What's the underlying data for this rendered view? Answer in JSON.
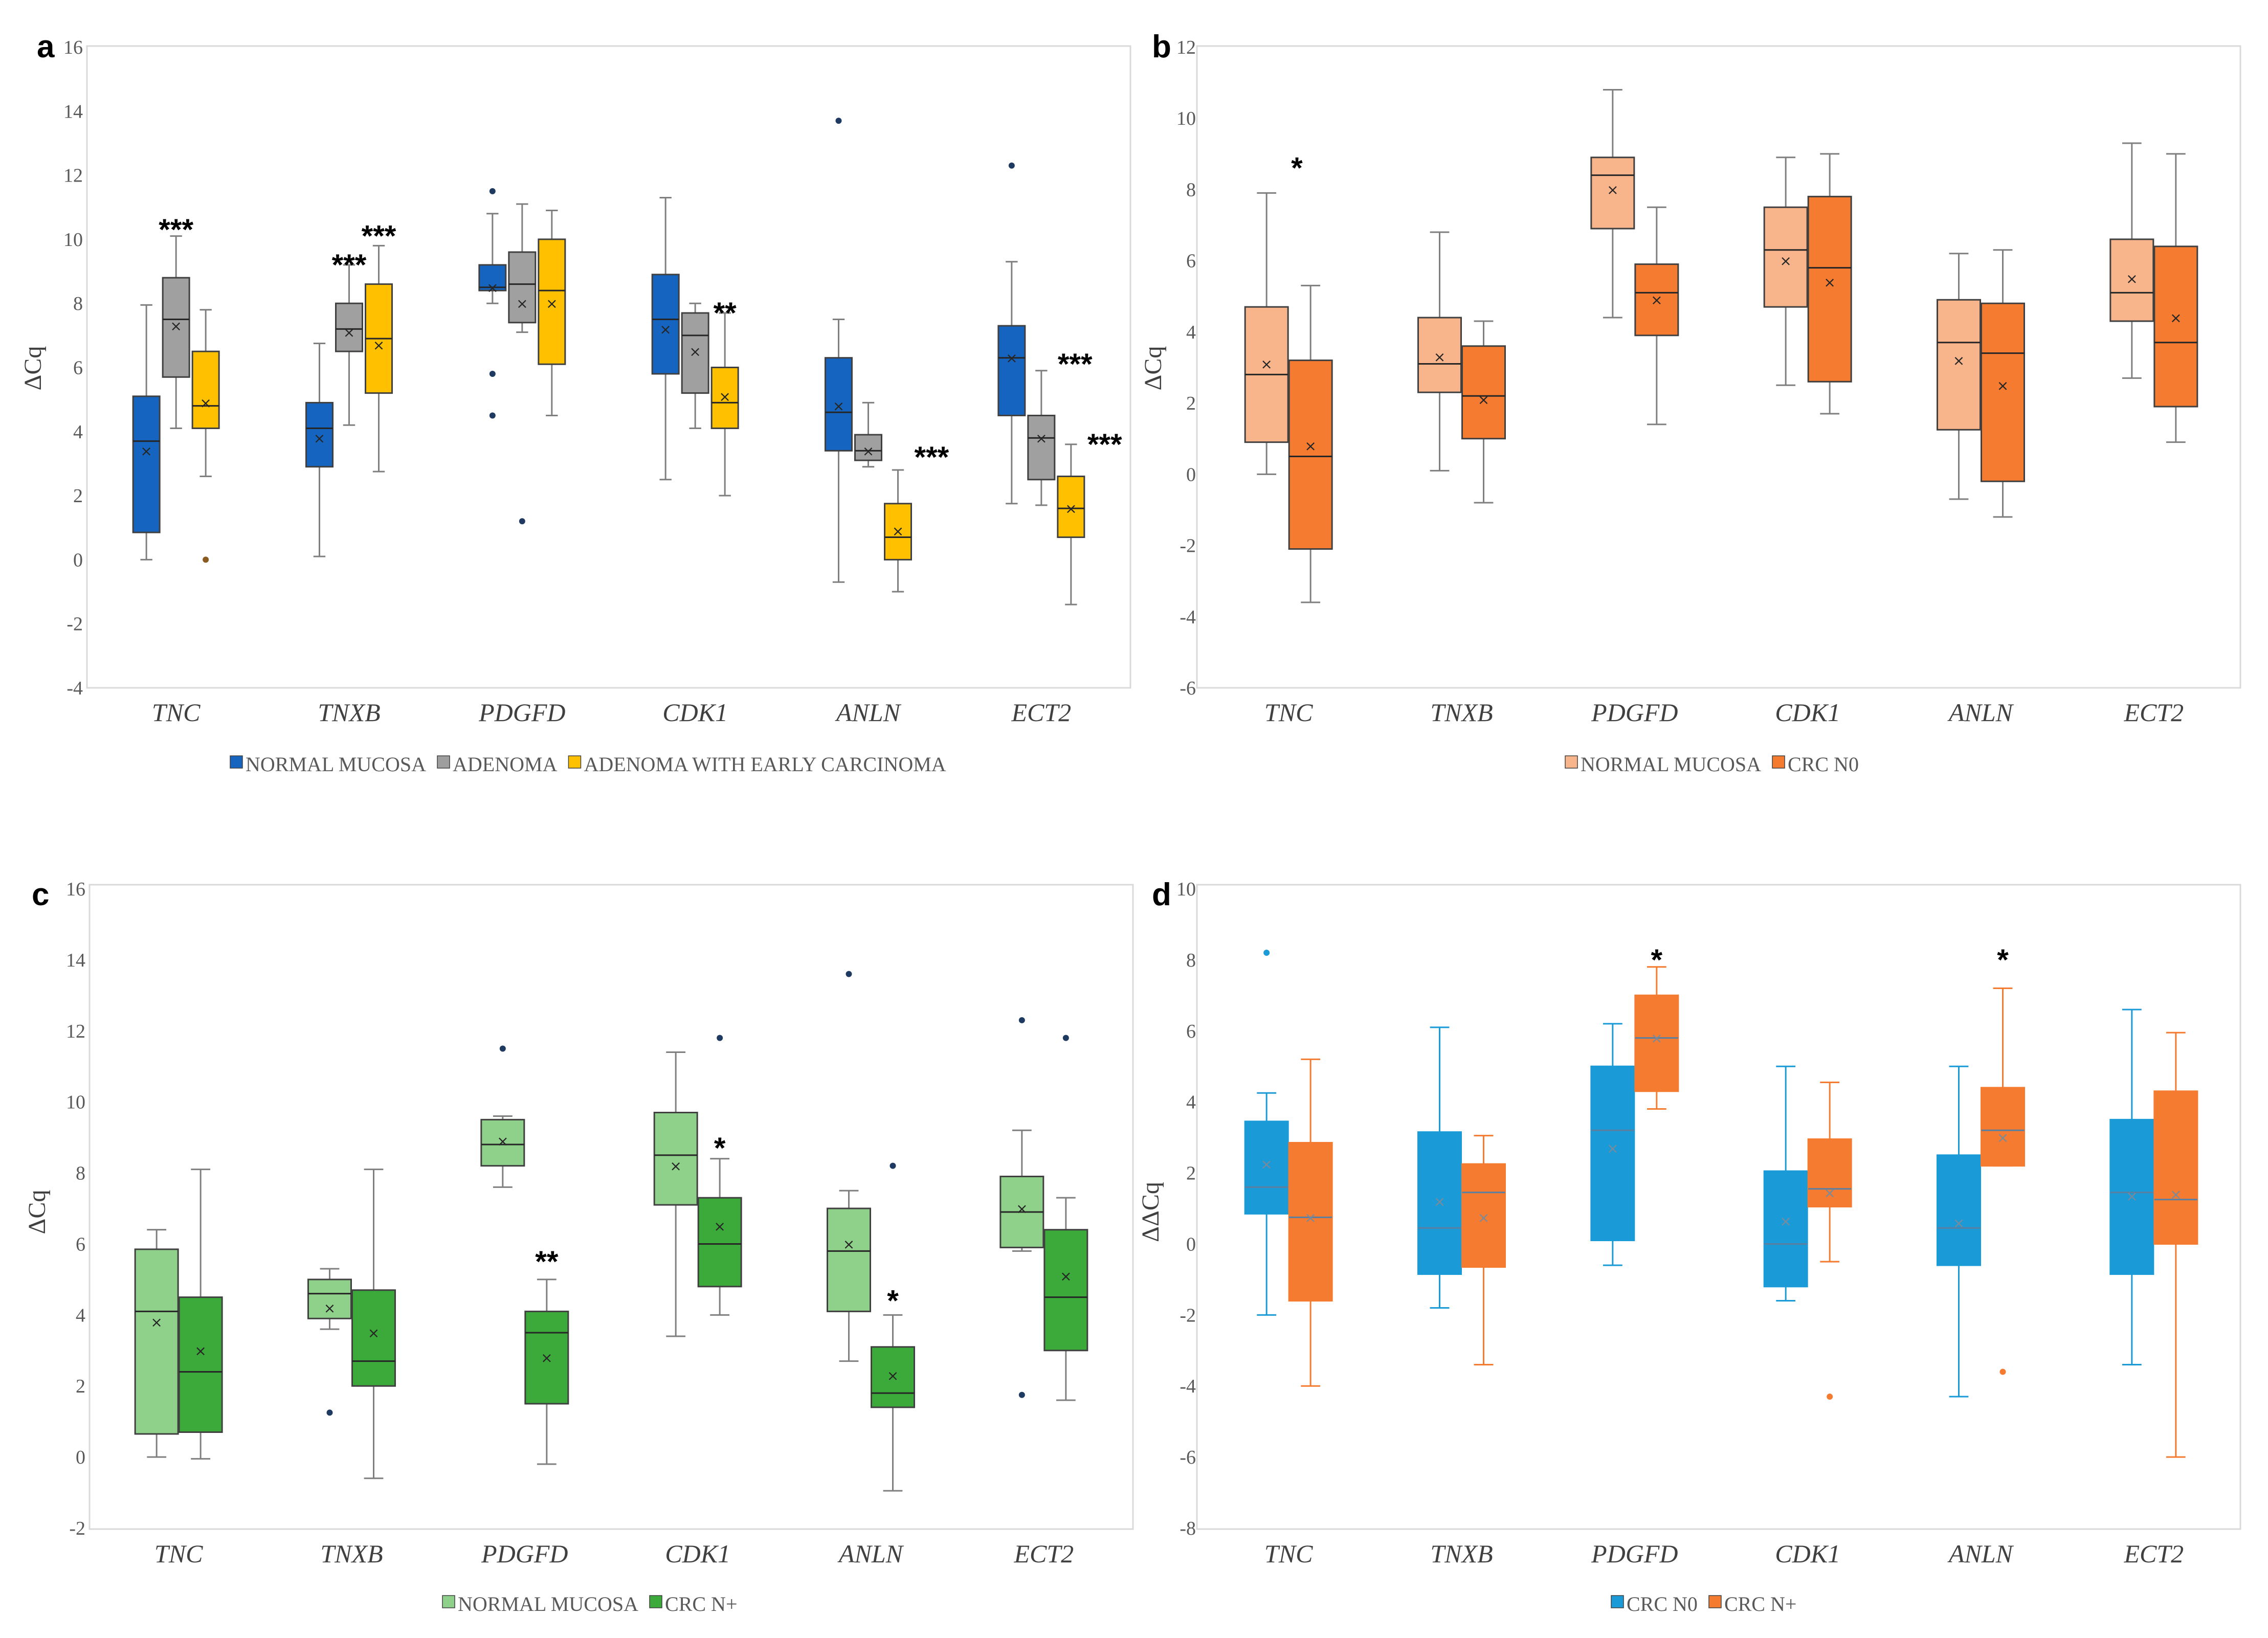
{
  "chart_data": [
    {
      "panel": "a",
      "type": "box",
      "ylabel": "ΔCq",
      "ylim": [
        -4,
        16
      ],
      "yticks": [
        -4,
        -2,
        0,
        2,
        4,
        6,
        8,
        10,
        12,
        14,
        16
      ],
      "categories": [
        "TNC",
        "TNXB",
        "PDGFD",
        "CDK1",
        "ANLN",
        "ECT2"
      ],
      "legend": [
        {
          "name": "NORMAL MUCOSA",
          "color": "#1565C0"
        },
        {
          "name": "ADENOMA",
          "color": "#9E9E9E"
        },
        {
          "name": "ADENOMA WITH EARLY CARCINOMA",
          "color": "#FFC000"
        }
      ],
      "series": [
        {
          "name": "NORMAL MUCOSA",
          "fill": "#1565C0",
          "stroke": "#404040",
          "boxes": [
            {
              "min": 0.0,
              "q1": 0.85,
              "median": 3.7,
              "q3": 5.1,
              "max": 7.95,
              "mean": 3.4,
              "outliers": []
            },
            {
              "min": 0.1,
              "q1": 2.9,
              "median": 4.1,
              "q3": 4.9,
              "max": 6.75,
              "mean": 3.8,
              "outliers": []
            },
            {
              "min": 8.0,
              "q1": 8.4,
              "median": 8.5,
              "q3": 9.2,
              "max": 10.8,
              "mean": 8.5,
              "outliers": [
                11.5,
                5.8,
                4.5
              ]
            },
            {
              "min": 2.5,
              "q1": 5.8,
              "median": 7.5,
              "q3": 8.9,
              "max": 11.3,
              "mean": 7.2,
              "outliers": []
            },
            {
              "min": -0.7,
              "q1": 3.4,
              "median": 4.6,
              "q3": 6.3,
              "max": 7.5,
              "mean": 4.8,
              "outliers": [
                13.7
              ]
            },
            {
              "min": 1.75,
              "q1": 4.5,
              "median": 6.3,
              "q3": 7.3,
              "max": 9.3,
              "mean": 6.3,
              "outliers": [
                12.3
              ]
            }
          ]
        },
        {
          "name": "ADENOMA",
          "fill": "#A0A0A0",
          "stroke": "#404040",
          "boxes": [
            {
              "min": 4.1,
              "q1": 5.7,
              "median": 7.5,
              "q3": 8.8,
              "max": 10.1,
              "mean": 7.3,
              "outliers": []
            },
            {
              "min": 4.2,
              "q1": 6.5,
              "median": 7.2,
              "q3": 8.0,
              "max": 9.2,
              "mean": 7.1,
              "outliers": []
            },
            {
              "min": 7.1,
              "q1": 7.4,
              "median": 8.6,
              "q3": 9.6,
              "max": 11.1,
              "mean": 8.0,
              "outliers": [
                1.2
              ]
            },
            {
              "min": 4.1,
              "q1": 5.2,
              "median": 7.0,
              "q3": 7.7,
              "max": 8.0,
              "mean": 6.5,
              "outliers": []
            },
            {
              "min": 2.9,
              "q1": 3.1,
              "median": 3.4,
              "q3": 3.9,
              "max": 4.9,
              "mean": 3.4,
              "outliers": []
            },
            {
              "min": 1.7,
              "q1": 2.5,
              "median": 3.8,
              "q3": 4.5,
              "max": 5.9,
              "mean": 3.8,
              "outliers": []
            }
          ]
        },
        {
          "name": "ADENOMA WITH EARLY CARCINOMA",
          "fill": "#FFC000",
          "stroke": "#404040",
          "boxes": [
            {
              "min": 2.6,
              "q1": 4.1,
              "median": 4.8,
              "q3": 6.5,
              "max": 7.8,
              "mean": 4.9,
              "outliers": [
                0.0
              ]
            },
            {
              "min": 2.75,
              "q1": 5.2,
              "median": 6.9,
              "q3": 8.6,
              "max": 9.8,
              "mean": 6.7,
              "outliers": []
            },
            {
              "min": 4.5,
              "q1": 6.1,
              "median": 8.4,
              "q3": 10.0,
              "max": 10.9,
              "mean": 8.0,
              "outliers": []
            },
            {
              "min": 2.0,
              "q1": 4.1,
              "median": 4.9,
              "q3": 6.0,
              "max": 7.7,
              "mean": 5.1,
              "outliers": []
            },
            {
              "min": -1.0,
              "q1": 0.0,
              "median": 0.7,
              "q3": 1.75,
              "max": 2.8,
              "mean": 0.9,
              "outliers": []
            },
            {
              "min": -1.4,
              "q1": 0.7,
              "median": 1.6,
              "q3": 2.6,
              "max": 3.6,
              "mean": 1.6,
              "outliers": []
            }
          ]
        }
      ],
      "annotations": [
        {
          "text": "***",
          "category": "TNC",
          "series": 1,
          "y": 10.3
        },
        {
          "text": "***",
          "category": "TNXB",
          "series": 1,
          "y": 9.2
        },
        {
          "text": "***",
          "category": "TNXB",
          "series": 2,
          "y": 10.1
        },
        {
          "text": "**",
          "category": "CDK1",
          "series": 2,
          "y": 7.7
        },
        {
          "text": "***",
          "category": "ANLN",
          "series": 2,
          "y": 3.2,
          "side": "right"
        },
        {
          "text": "***",
          "category": "ECT2",
          "series": 1,
          "y": 6.1,
          "side": "right"
        },
        {
          "text": "***",
          "category": "ECT2",
          "series": 2,
          "y": 3.6,
          "side": "right"
        }
      ]
    },
    {
      "panel": "b",
      "type": "box",
      "ylabel": "ΔCq",
      "ylim": [
        -6,
        12
      ],
      "yticks": [
        -6,
        -4,
        -2,
        0,
        2,
        4,
        6,
        8,
        10,
        12
      ],
      "categories": [
        "TNC",
        "TNXB",
        "PDGFD",
        "CDK1",
        "ANLN",
        "ECT2"
      ],
      "legend": [
        {
          "name": "NORMAL MUCOSA",
          "color": "#F8B48A"
        },
        {
          "name": "CRC N0",
          "color": "#F47B30"
        }
      ],
      "series": [
        {
          "name": "NORMAL MUCOSA",
          "fill": "#F8B48A",
          "stroke": "#404040",
          "boxes": [
            {
              "min": 0.0,
              "q1": 0.9,
              "median": 2.8,
              "q3": 4.7,
              "max": 7.9,
              "mean": 3.1,
              "outliers": []
            },
            {
              "min": 0.1,
              "q1": 2.3,
              "median": 3.1,
              "q3": 4.4,
              "max": 6.8,
              "mean": 3.3,
              "outliers": []
            },
            {
              "min": 4.4,
              "q1": 6.9,
              "median": 8.4,
              "q3": 8.9,
              "max": 10.8,
              "mean": 8.0,
              "outliers": []
            },
            {
              "min": 2.5,
              "q1": 4.7,
              "median": 6.3,
              "q3": 7.5,
              "max": 8.9,
              "mean": 6.0,
              "outliers": []
            },
            {
              "min": -0.7,
              "q1": 1.25,
              "median": 3.7,
              "q3": 4.9,
              "max": 6.2,
              "mean": 3.2,
              "outliers": []
            },
            {
              "min": 2.7,
              "q1": 4.3,
              "median": 5.1,
              "q3": 6.6,
              "max": 9.3,
              "mean": 5.5,
              "outliers": []
            }
          ]
        },
        {
          "name": "CRC N0",
          "fill": "#F47B30",
          "stroke": "#404040",
          "boxes": [
            {
              "min": -3.6,
              "q1": -2.1,
              "median": 0.5,
              "q3": 3.2,
              "max": 5.3,
              "mean": 0.8,
              "outliers": []
            },
            {
              "min": -0.8,
              "q1": 1.0,
              "median": 2.2,
              "q3": 3.6,
              "max": 4.3,
              "mean": 2.1,
              "outliers": []
            },
            {
              "min": 1.4,
              "q1": 3.9,
              "median": 5.1,
              "q3": 5.9,
              "max": 7.5,
              "mean": 4.9,
              "outliers": []
            },
            {
              "min": 1.7,
              "q1": 2.6,
              "median": 5.8,
              "q3": 7.8,
              "max": 9.0,
              "mean": 5.4,
              "outliers": []
            },
            {
              "min": -1.2,
              "q1": -0.2,
              "median": 3.4,
              "q3": 4.8,
              "max": 6.3,
              "mean": 2.5,
              "outliers": []
            },
            {
              "min": 0.9,
              "q1": 1.9,
              "median": 3.7,
              "q3": 6.4,
              "max": 9.0,
              "mean": 4.4,
              "outliers": []
            }
          ]
        }
      ],
      "annotations": [
        {
          "text": "*",
          "category": "TNC",
          "series": 0,
          "y": 8.6,
          "side": "right"
        }
      ]
    },
    {
      "panel": "c",
      "type": "box",
      "ylabel": "ΔCq",
      "ylim": [
        -2,
        16
      ],
      "yticks": [
        -2,
        0,
        2,
        4,
        6,
        8,
        10,
        12,
        14,
        16
      ],
      "categories": [
        "TNC",
        "TNXB",
        "PDGFD",
        "CDK1",
        "ANLN",
        "ECT2"
      ],
      "legend": [
        {
          "name": "NORMAL MUCOSA",
          "color": "#8FD18A"
        },
        {
          "name": "CRC N+",
          "color": "#3BAA3B"
        }
      ],
      "series": [
        {
          "name": "NORMAL MUCOSA",
          "fill": "#8FD18A",
          "stroke": "#404040",
          "boxes": [
            {
              "min": 0.0,
              "q1": 0.65,
              "median": 4.1,
              "q3": 5.85,
              "max": 6.4,
              "mean": 3.8,
              "outliers": []
            },
            {
              "min": 3.6,
              "q1": 3.9,
              "median": 4.6,
              "q3": 5.0,
              "max": 5.3,
              "mean": 4.2,
              "outliers": [
                1.25
              ]
            },
            {
              "min": 7.6,
              "q1": 8.2,
              "median": 8.8,
              "q3": 9.5,
              "max": 9.6,
              "mean": 8.9,
              "outliers": [
                11.5
              ]
            },
            {
              "min": 3.4,
              "q1": 7.1,
              "median": 8.5,
              "q3": 9.7,
              "max": 11.4,
              "mean": 8.2,
              "outliers": []
            },
            {
              "min": 2.7,
              "q1": 4.1,
              "median": 5.8,
              "q3": 7.0,
              "max": 7.5,
              "mean": 6.0,
              "outliers": [
                13.6
              ]
            },
            {
              "min": 5.8,
              "q1": 5.9,
              "median": 6.9,
              "q3": 7.9,
              "max": 9.2,
              "mean": 7.0,
              "outliers": [
                12.3,
                1.75
              ]
            }
          ]
        },
        {
          "name": "CRC N+",
          "fill": "#3BAA3B",
          "stroke": "#404040",
          "boxes": [
            {
              "min": -0.05,
              "q1": 0.7,
              "median": 2.4,
              "q3": 4.5,
              "max": 8.1,
              "mean": 3.0,
              "outliers": []
            },
            {
              "min": -0.6,
              "q1": 2.0,
              "median": 2.7,
              "q3": 4.7,
              "max": 8.1,
              "mean": 3.5,
              "outliers": []
            },
            {
              "min": -0.2,
              "q1": 1.5,
              "median": 3.5,
              "q3": 4.1,
              "max": 5.0,
              "mean": 2.8,
              "outliers": []
            },
            {
              "min": 4.0,
              "q1": 4.8,
              "median": 6.0,
              "q3": 7.3,
              "max": 8.4,
              "mean": 6.5,
              "outliers": [
                11.8
              ]
            },
            {
              "min": -0.95,
              "q1": 1.4,
              "median": 1.8,
              "q3": 3.1,
              "max": 4.0,
              "mean": 2.3,
              "outliers": [
                8.2
              ]
            },
            {
              "min": 1.6,
              "q1": 3.0,
              "median": 4.5,
              "q3": 6.4,
              "max": 7.3,
              "mean": 5.1,
              "outliers": [
                11.8
              ]
            }
          ]
        }
      ],
      "annotations": [
        {
          "text": "**",
          "category": "PDGFD",
          "series": 1,
          "y": 5.5
        },
        {
          "text": "*",
          "category": "CDK1",
          "series": 1,
          "y": 8.7
        },
        {
          "text": "*",
          "category": "ANLN",
          "series": 1,
          "y": 4.4
        }
      ]
    },
    {
      "panel": "d",
      "type": "box",
      "ylabel": "ΔΔCq",
      "ylim": [
        -8,
        10
      ],
      "yticks": [
        -8,
        -6,
        -4,
        -2,
        0,
        2,
        4,
        6,
        8,
        10
      ],
      "categories": [
        "TNC",
        "TNXB",
        "PDGFD",
        "CDK1",
        "ANLN",
        "ECT2"
      ],
      "legend": [
        {
          "name": "CRC N0",
          "color": "#1A9BD7"
        },
        {
          "name": "CRC N+",
          "color": "#F47B30"
        }
      ],
      "series": [
        {
          "name": "CRC N0",
          "fill": "#1A9BD7",
          "stroke": "#1A9BD7",
          "boxes": [
            {
              "min": -2.0,
              "q1": 0.85,
              "median": 1.6,
              "q3": 3.45,
              "max": 4.25,
              "mean": 2.25,
              "outliers": [
                8.2
              ]
            },
            {
              "min": -1.8,
              "q1": -0.85,
              "median": 0.45,
              "q3": 3.15,
              "max": 6.1,
              "mean": 1.2,
              "outliers": []
            },
            {
              "min": -0.6,
              "q1": 0.1,
              "median": 3.2,
              "q3": 5.0,
              "max": 6.2,
              "mean": 2.7,
              "outliers": []
            },
            {
              "min": -1.6,
              "q1": -1.2,
              "median": 0.0,
              "q3": 2.05,
              "max": 5.0,
              "mean": 0.65,
              "outliers": []
            },
            {
              "min": -4.3,
              "q1": -0.6,
              "median": 0.45,
              "q3": 2.5,
              "max": 5.0,
              "mean": 0.6,
              "outliers": []
            },
            {
              "min": -3.4,
              "q1": -0.85,
              "median": 1.45,
              "q3": 3.5,
              "max": 6.6,
              "mean": 1.35,
              "outliers": []
            }
          ]
        },
        {
          "name": "CRC N+",
          "fill": "#F47B30",
          "stroke": "#F47B30",
          "boxes": [
            {
              "min": -4.0,
              "q1": -1.6,
              "median": 0.75,
              "q3": 2.85,
              "max": 5.2,
              "mean": 0.75,
              "outliers": []
            },
            {
              "min": -3.4,
              "q1": -0.65,
              "median": 1.45,
              "q3": 2.25,
              "max": 3.05,
              "mean": 0.75,
              "outliers": []
            },
            {
              "min": 3.8,
              "q1": 4.3,
              "median": 5.8,
              "q3": 7.0,
              "max": 7.8,
              "mean": 5.8,
              "outliers": []
            },
            {
              "min": -0.5,
              "q1": 1.05,
              "median": 1.55,
              "q3": 2.95,
              "max": 4.55,
              "mean": 1.45,
              "outliers": [
                -4.3
              ]
            },
            {
              "min": 2.2,
              "q1": 2.2,
              "median": 3.2,
              "q3": 4.4,
              "max": 7.2,
              "mean": 3.0,
              "outliers": [
                -3.6
              ]
            },
            {
              "min": -6.0,
              "q1": 0.0,
              "median": 1.25,
              "q3": 4.3,
              "max": 5.95,
              "mean": 1.4,
              "outliers": []
            }
          ]
        }
      ],
      "annotations": [
        {
          "text": "*",
          "category": "PDGFD",
          "series": 1,
          "y": 8.0
        },
        {
          "text": "*",
          "category": "ANLN",
          "series": 1,
          "y": 8.0
        }
      ]
    }
  ]
}
